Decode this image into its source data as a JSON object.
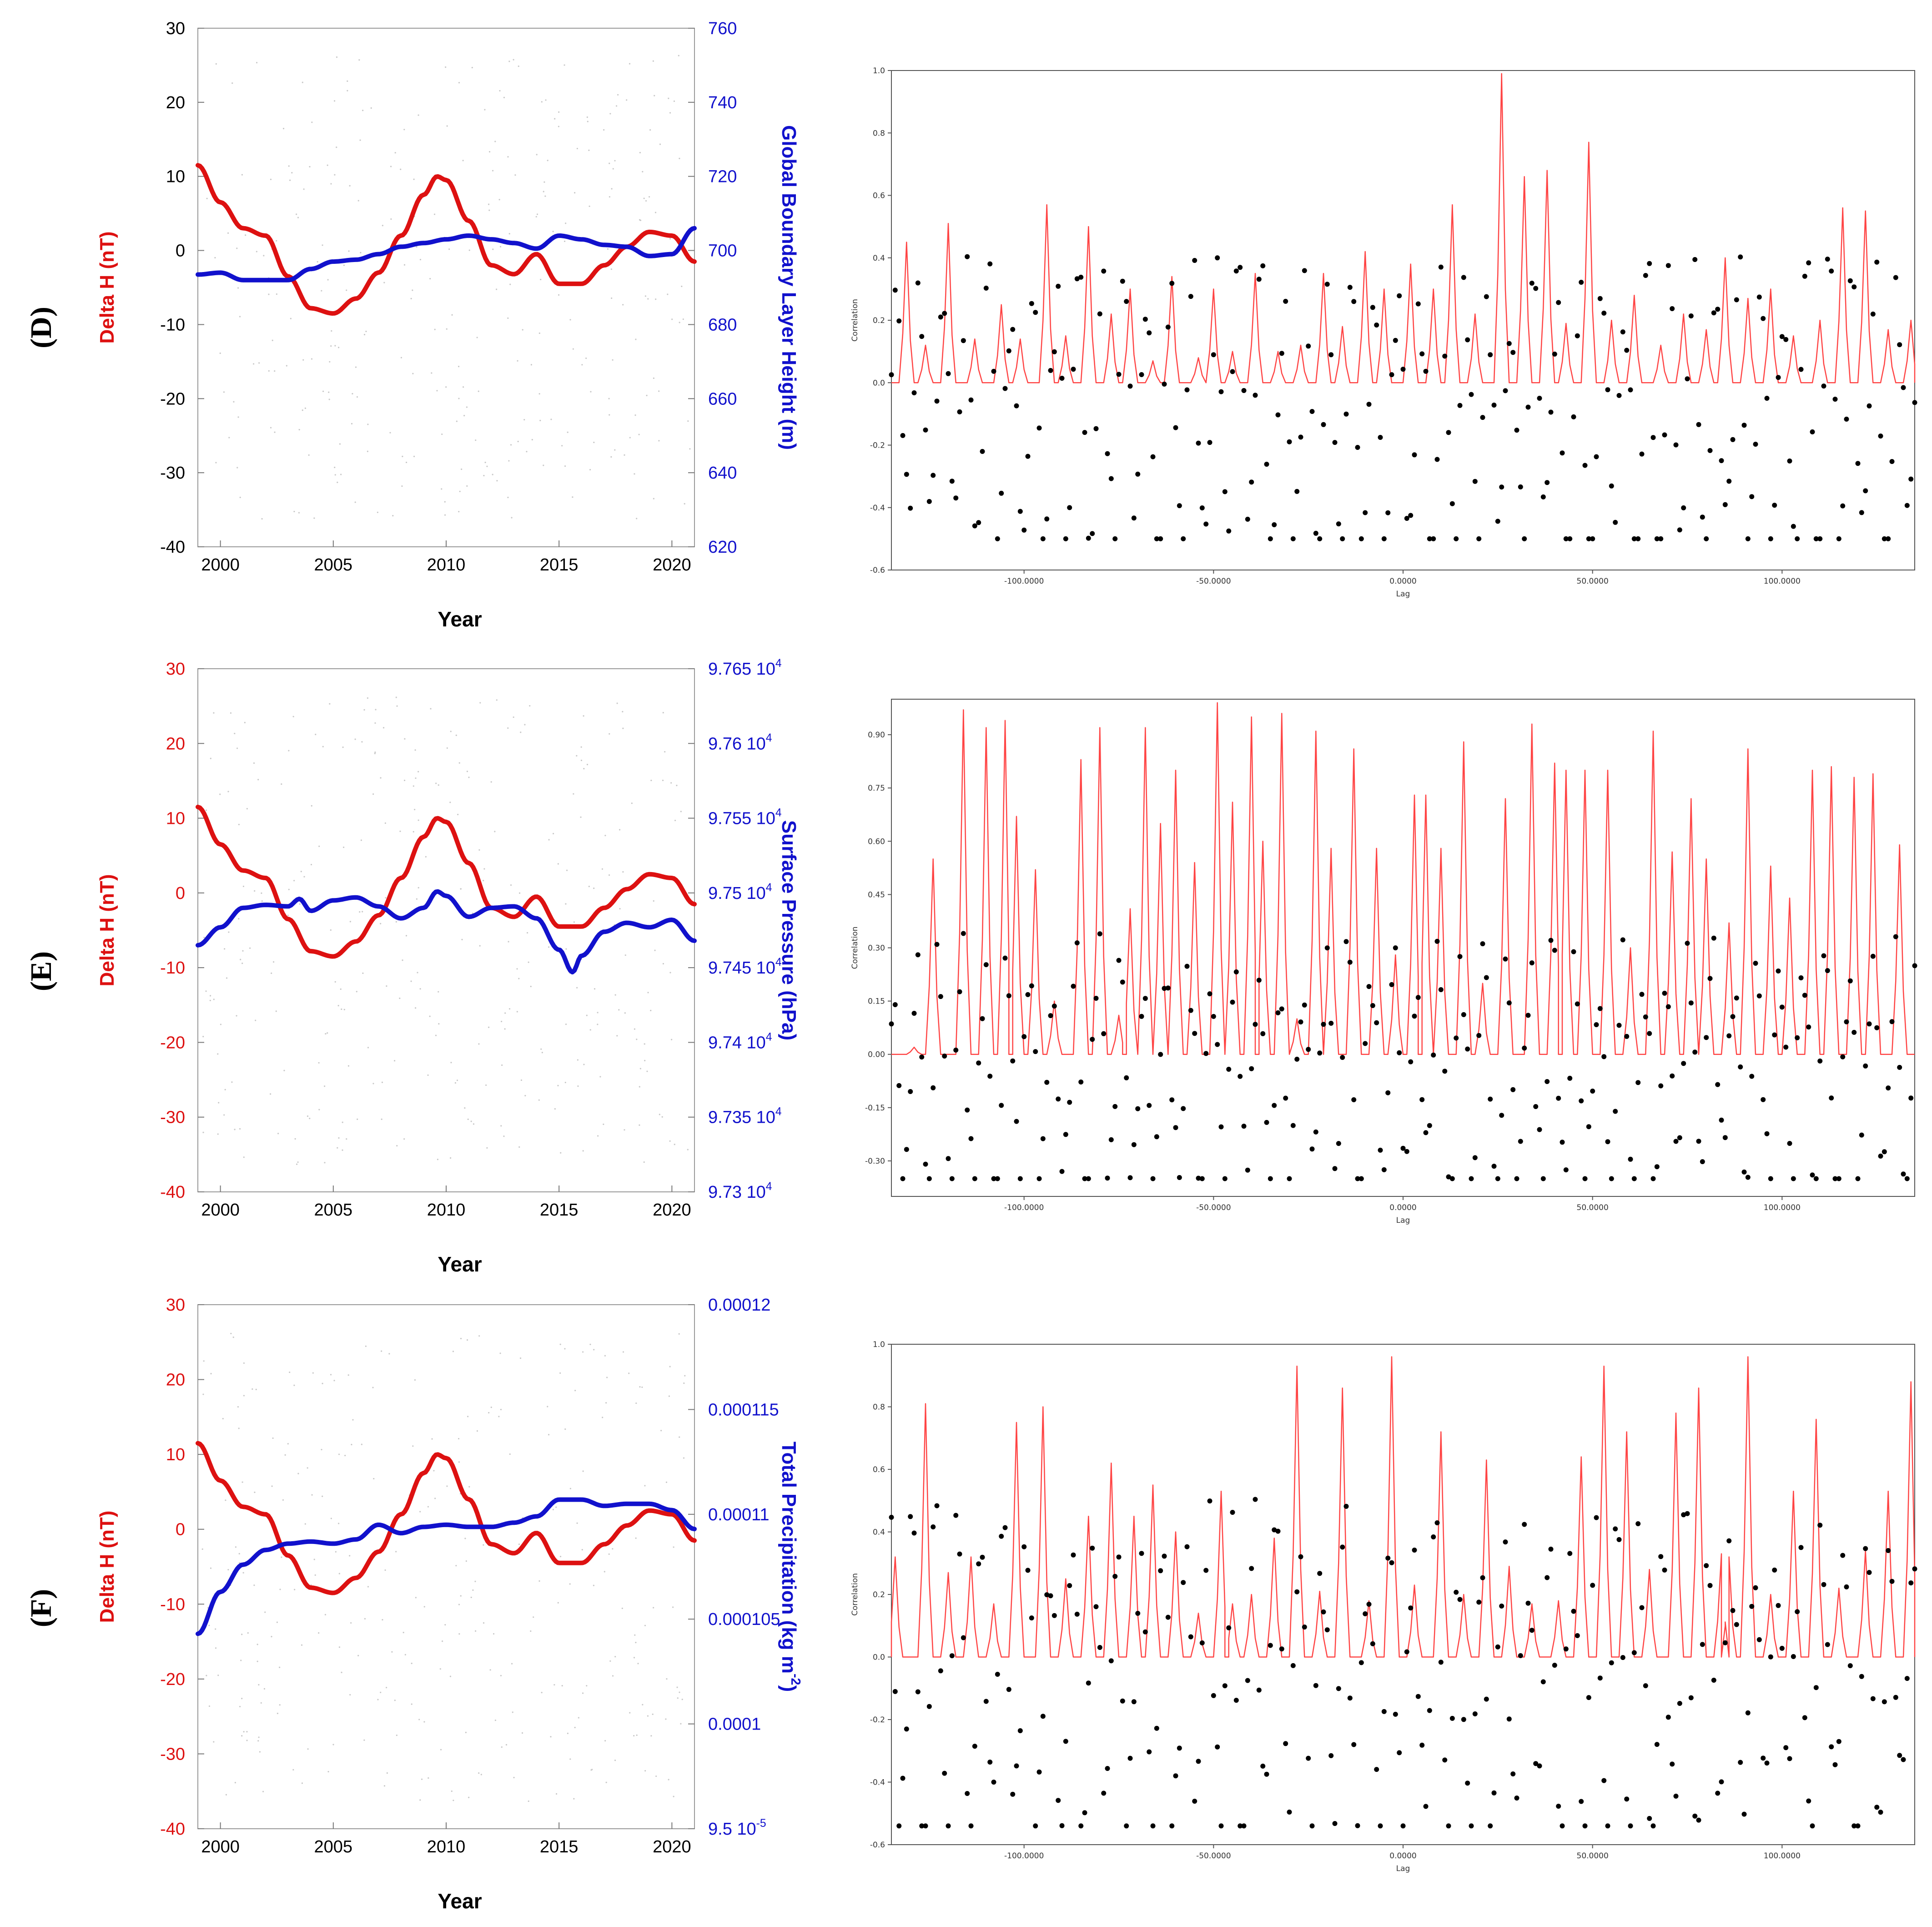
{
  "chart_data": [
    {
      "panel": "(D)",
      "type": "line",
      "xlabel": "Year",
      "xticks": [
        2000,
        2005,
        2010,
        2015,
        2020
      ],
      "xlim": [
        1999,
        2021
      ],
      "left_axis": {
        "label": "Delta H (nT)",
        "ylim": [
          -40,
          30
        ],
        "ticks": [
          "30",
          "20",
          "10",
          "0",
          "-10",
          "-20",
          "-30",
          "-40"
        ],
        "color": "#dd1111"
      },
      "right_axis": {
        "label": "Global Boundary Layer Height (m)",
        "ylim": [
          620,
          760
        ],
        "ticks": [
          "760",
          "740",
          "720",
          "700",
          "680",
          "660",
          "640",
          "620"
        ],
        "color": "#1111cc"
      },
      "series": [
        {
          "name": "Delta H (nT)",
          "axis": "left",
          "color": "#dd1111",
          "x": [
            1999,
            2000,
            2001,
            2002,
            2003,
            2004,
            2005,
            2006,
            2007,
            2008,
            2009,
            2009.6,
            2010,
            2011,
            2012,
            2013,
            2014,
            2015,
            2016,
            2017,
            2018,
            2019,
            2020,
            2021
          ],
          "y": [
            11.5,
            6.5,
            3.0,
            2.0,
            -3.5,
            -7.8,
            -8.5,
            -6.5,
            -3.0,
            2.0,
            7.5,
            10.0,
            9.5,
            4.0,
            -2.0,
            -3.2,
            -0.5,
            -4.5,
            -4.5,
            -2.0,
            0.5,
            2.5,
            2.0,
            -1.5
          ]
        },
        {
          "name": "Global Boundary Layer Height (m)",
          "axis": "right",
          "color": "#1111cc",
          "x": [
            1999,
            2000,
            2001,
            2002,
            2003,
            2004,
            2005,
            2006,
            2007,
            2008,
            2009,
            2010,
            2011,
            2012,
            2013,
            2014,
            2015,
            2016,
            2017,
            2018,
            2019,
            2020,
            2021
          ],
          "y": [
            693.5,
            694,
            692,
            692,
            692,
            695,
            697,
            697.5,
            699,
            701,
            702,
            703,
            704,
            703,
            702,
            700.5,
            704,
            703,
            701.5,
            701,
            698.5,
            699,
            706
          ]
        }
      ]
    },
    {
      "panel": "(D)",
      "type": "line",
      "xlabel": "Lag",
      "ylabel": "Correlation",
      "xlim": [
        -135,
        135
      ],
      "ylim": [
        -0.6,
        1.0
      ],
      "xticks": [
        "-100.0000",
        "-50.0000",
        "0.0000",
        "50.0000",
        "100.0000"
      ],
      "yticks": [
        "1.0",
        "0.8",
        "0.6",
        "0.4",
        "0.2",
        "0.0",
        "-0.2",
        "-0.4",
        "-0.6"
      ],
      "peaks": [
        [
          -131,
          0.45
        ],
        [
          -126,
          0.12
        ],
        [
          -120,
          0.51
        ],
        [
          -113,
          0.14
        ],
        [
          -106,
          0.25
        ],
        [
          -101,
          0.14
        ],
        [
          -94,
          0.57
        ],
        [
          -89,
          0.15
        ],
        [
          -83,
          0.5
        ],
        [
          -77,
          0.22
        ],
        [
          -72,
          0.3
        ],
        [
          -66,
          0.07
        ],
        [
          -61,
          0.34
        ],
        [
          -54,
          0.08
        ],
        [
          -50,
          0.3
        ],
        [
          -45,
          0.1
        ],
        [
          -39,
          0.35
        ],
        [
          -33,
          0.1
        ],
        [
          -27,
          0.12
        ],
        [
          -21,
          0.35
        ],
        [
          -16,
          0.18
        ],
        [
          -10,
          0.42
        ],
        [
          -5,
          0.3
        ],
        [
          2,
          0.38
        ],
        [
          8,
          0.3
        ],
        [
          13,
          0.57
        ],
        [
          19,
          0.22
        ],
        [
          26,
          0.99
        ],
        [
          32,
          0.66
        ],
        [
          38,
          0.68
        ],
        [
          43,
          0.19
        ],
        [
          49,
          0.77
        ],
        [
          55,
          0.2
        ],
        [
          61,
          0.28
        ],
        [
          68,
          0.12
        ],
        [
          74,
          0.22
        ],
        [
          80,
          0.17
        ],
        [
          85,
          0.4
        ],
        [
          91,
          0.27
        ],
        [
          97,
          0.3
        ],
        [
          103,
          0.15
        ],
        [
          110,
          0.2
        ],
        [
          116,
          0.56
        ],
        [
          122,
          0.55
        ],
        [
          128,
          0.17
        ],
        [
          134,
          0.2
        ]
      ],
      "points_count": 271,
      "dot_range": [
        -0.5,
        0.44
      ]
    },
    {
      "panel": "(E)",
      "type": "line",
      "xlabel": "Year",
      "xticks": [
        2000,
        2005,
        2010,
        2015,
        2020
      ],
      "xlim": [
        1999,
        2021
      ],
      "left_axis": {
        "label": "Delta H (nT)",
        "ylim": [
          -40,
          30
        ],
        "ticks": [
          "30",
          "20",
          "10",
          "0",
          "-10",
          "-20",
          "-30",
          "-40"
        ],
        "color": "#dd1111"
      },
      "right_axis": {
        "label": "Surface Pressure (hPa)",
        "ylim": [
          97300,
          97650
        ],
        "ticks": [
          "9.765 10",
          "9.76 10",
          "9.755 10",
          "9.75 10",
          "9.745 10",
          "9.74 10",
          "9.735 10",
          "9.73 10"
        ],
        "tick_exponent": "4",
        "color": "#1111cc"
      },
      "series": [
        {
          "name": "Delta H (nT)",
          "axis": "left",
          "color": "#dd1111",
          "x": [
            1999,
            2000,
            2001,
            2002,
            2003,
            2004,
            2005,
            2006,
            2007,
            2008,
            2009,
            2009.6,
            2010,
            2011,
            2012,
            2013,
            2014,
            2015,
            2016,
            2017,
            2018,
            2019,
            2020,
            2021
          ],
          "y": [
            11.5,
            6.5,
            3.0,
            2.0,
            -3.5,
            -7.8,
            -8.5,
            -6.5,
            -3.0,
            2.0,
            7.5,
            10.0,
            9.5,
            4.0,
            -2.0,
            -3.2,
            -0.5,
            -4.5,
            -4.5,
            -2.0,
            0.5,
            2.5,
            2.0,
            -1.5
          ]
        },
        {
          "name": "Surface Pressure (hPa)",
          "axis": "right",
          "color": "#1111cc",
          "x": [
            1999,
            2000,
            2001,
            2002,
            2003,
            2003.5,
            2004,
            2005,
            2006,
            2007,
            2008,
            2009,
            2009.6,
            2010,
            2011,
            2012,
            2013,
            2014,
            2015,
            2015.6,
            2016,
            2017,
            2018,
            2019,
            2020,
            2021
          ],
          "y": [
            97465,
            97477,
            97490,
            97492,
            97491,
            97496,
            97488,
            97495,
            97497,
            97491,
            97483,
            97490,
            97501,
            97498,
            97484,
            97490,
            97491,
            97483,
            97462,
            97447,
            97458,
            97474,
            97480,
            97477,
            97482,
            97468
          ]
        }
      ]
    },
    {
      "panel": "(E)",
      "type": "line",
      "xlabel": "Lag",
      "ylabel": "Correlation",
      "xlim": [
        -135,
        135
      ],
      "ylim": [
        -0.4,
        1.0
      ],
      "xticks": [
        "-100.0000",
        "-50.0000",
        "0.0000",
        "50.0000",
        "100.0000"
      ],
      "yticks": [
        "0.90",
        "0.75",
        "0.60",
        "0.45",
        "0.30",
        "0.15",
        "0.00",
        "-0.15",
        "-0.30"
      ],
      "peaks": [
        [
          -129,
          0.02
        ],
        [
          -124,
          0.55
        ],
        [
          -116,
          0.97
        ],
        [
          -110,
          0.92
        ],
        [
          -105,
          0.94
        ],
        [
          -102,
          0.67
        ],
        [
          -97,
          0.52
        ],
        [
          -92,
          0.15
        ],
        [
          -85,
          0.83
        ],
        [
          -80,
          0.92
        ],
        [
          -75,
          0.11
        ],
        [
          -72,
          0.41
        ],
        [
          -68,
          0.92
        ],
        [
          -64,
          0.65
        ],
        [
          -60,
          0.8
        ],
        [
          -55,
          0.54
        ],
        [
          -49,
          0.99
        ],
        [
          -45,
          0.71
        ],
        [
          -40,
          0.95
        ],
        [
          -37,
          0.6
        ],
        [
          -32,
          0.96
        ],
        [
          -28,
          0.1
        ],
        [
          -23,
          0.91
        ],
        [
          -19,
          0.58
        ],
        [
          -13,
          0.86
        ],
        [
          -7,
          0.58
        ],
        [
          -2,
          0.28
        ],
        [
          3,
          0.73
        ],
        [
          6,
          0.73
        ],
        [
          10,
          0.58
        ],
        [
          16,
          0.88
        ],
        [
          21,
          0.2
        ],
        [
          27,
          0.72
        ],
        [
          34,
          0.93
        ],
        [
          40,
          0.82
        ],
        [
          43,
          0.8
        ],
        [
          48,
          0.8
        ],
        [
          54,
          0.8
        ],
        [
          60,
          0.3
        ],
        [
          66,
          0.91
        ],
        [
          71,
          0.57
        ],
        [
          76,
          0.72
        ],
        [
          80,
          0.55
        ],
        [
          86,
          0.37
        ],
        [
          91,
          0.86
        ],
        [
          97,
          0.53
        ],
        [
          102,
          0.44
        ],
        [
          108,
          0.8
        ],
        [
          113,
          0.81
        ],
        [
          119,
          0.78
        ],
        [
          124,
          0.79
        ],
        [
          131,
          0.59
        ]
      ],
      "points_count": 271,
      "dot_range": [
        -0.35,
        0.36
      ]
    },
    {
      "panel": "(F)",
      "type": "line",
      "xlabel": "Year",
      "xticks": [
        2000,
        2005,
        2010,
        2015,
        2020
      ],
      "xlim": [
        1999,
        2021
      ],
      "left_axis": {
        "label": "Delta H (nT)",
        "ylim": [
          -40,
          30
        ],
        "ticks": [
          "30",
          "20",
          "10",
          "0",
          "-10",
          "-20",
          "-30",
          "-40"
        ],
        "color": "#dd1111"
      },
      "right_axis": {
        "label": "Total Precipitation (kg m",
        "label_exponent": "-2",
        "label_suffix": ")",
        "ylim": [
          9.5e-05,
          0.00012
        ],
        "ticks": [
          "0.00012",
          "0.000115",
          "0.00011",
          "0.000105",
          "0.0001",
          "9.5 10"
        ],
        "last_tick_exponent": "-5",
        "color": "#1111cc"
      },
      "series": [
        {
          "name": "Delta H (nT)",
          "axis": "left",
          "color": "#dd1111",
          "x": [
            1999,
            2000,
            2001,
            2002,
            2003,
            2004,
            2005,
            2006,
            2007,
            2008,
            2009,
            2009.6,
            2010,
            2011,
            2012,
            2013,
            2014,
            2015,
            2016,
            2017,
            2018,
            2019,
            2020,
            2021
          ],
          "y": [
            11.5,
            6.5,
            3.0,
            2.0,
            -3.5,
            -7.8,
            -8.5,
            -6.5,
            -3.0,
            2.0,
            7.5,
            10.0,
            9.5,
            4.0,
            -2.0,
            -3.2,
            -0.5,
            -4.5,
            -4.5,
            -2.0,
            0.5,
            2.5,
            2.0,
            -1.5
          ]
        },
        {
          "name": "Total Precipitation (kg m-2)",
          "axis": "right",
          "color": "#1111cc",
          "x": [
            1999,
            2000,
            2001,
            2002,
            2003,
            2004,
            2005,
            2006,
            2007,
            2008,
            2009,
            2010,
            2011,
            2012,
            2013,
            2014,
            2015,
            2016,
            2017,
            2018,
            2019,
            2020,
            2021
          ],
          "y": [
            0.0001043,
            0.0001063,
            0.0001076,
            0.0001083,
            0.0001086,
            0.0001087,
            0.0001086,
            0.0001088,
            0.0001095,
            0.0001091,
            0.0001094,
            0.0001095,
            0.0001094,
            0.0001094,
            0.0001096,
            0.0001099,
            0.0001107,
            0.0001107,
            0.0001104,
            0.0001105,
            0.0001105,
            0.0001102,
            0.0001093
          ]
        }
      ]
    },
    {
      "panel": "(F)",
      "type": "line",
      "xlabel": "Lag",
      "ylabel": "Correlation",
      "xlim": [
        -135,
        135
      ],
      "ylim": [
        -0.6,
        1.0
      ],
      "xticks": [
        "-100.0000",
        "-50.0000",
        "0.0000",
        "50.0000",
        "100.0000"
      ],
      "yticks": [
        "1.0",
        "0.8",
        "0.6",
        "0.4",
        "0.2",
        "0.0",
        "-0.2",
        "-0.4",
        "-0.6"
      ],
      "peaks": [
        [
          -134,
          0.32
        ],
        [
          -126,
          0.81
        ],
        [
          -120,
          0.27
        ],
        [
          -114,
          0.32
        ],
        [
          -108,
          0.17
        ],
        [
          -102,
          0.75
        ],
        [
          -95,
          0.8
        ],
        [
          -89,
          0.25
        ],
        [
          -83,
          0.45
        ],
        [
          -77,
          0.62
        ],
        [
          -71,
          0.45
        ],
        [
          -66,
          0.55
        ],
        [
          -60,
          0.4
        ],
        [
          -54,
          0.14
        ],
        [
          -48,
          0.53
        ],
        [
          -45,
          0.17
        ],
        [
          -40,
          0.2
        ],
        [
          -34,
          0.38
        ],
        [
          -28,
          0.93
        ],
        [
          -22,
          0.21
        ],
        [
          -16,
          0.86
        ],
        [
          -9,
          0.18
        ],
        [
          -3,
          0.96
        ],
        [
          3,
          0.23
        ],
        [
          10,
          0.72
        ],
        [
          16,
          0.2
        ],
        [
          22,
          0.63
        ],
        [
          28,
          0.29
        ],
        [
          34,
          0.17
        ],
        [
          41,
          0.18
        ],
        [
          47,
          0.64
        ],
        [
          53,
          0.93
        ],
        [
          59,
          0.72
        ],
        [
          65,
          0.28
        ],
        [
          72,
          0.78
        ],
        [
          78,
          0.86
        ],
        [
          84,
          0.33
        ],
        [
          86,
          0.32
        ],
        [
          91,
          0.96
        ],
        [
          97,
          0.2
        ],
        [
          103,
          0.53
        ],
        [
          109,
          0.76
        ],
        [
          115,
          0.22
        ],
        [
          122,
          0.34
        ],
        [
          128,
          0.53
        ],
        [
          134,
          0.88
        ]
      ],
      "points_count": 271,
      "dot_range": [
        -0.54,
        0.52
      ]
    }
  ]
}
